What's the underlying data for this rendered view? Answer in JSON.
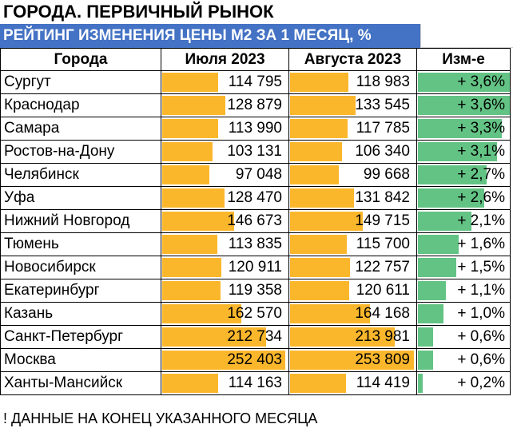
{
  "title": "ГОРОДА. ПЕРВИЧНЫЙ РЫНОК",
  "subtitle": "РЕЙТИНГ ИЗМЕНЕНИЯ ЦЕНЫ М2 ЗА 1 МЕСЯЦ, %",
  "headers": {
    "city": "Города",
    "july": "Июля 2023",
    "august": "Августа 2023",
    "change": "Изм-е"
  },
  "colors": {
    "header_bg": "#4472c4",
    "price_bar": "#fbb72c",
    "change_bar": "#63c384"
  },
  "rows": [
    {
      "city": "Сургут",
      "july": "114 795",
      "august": "118 983",
      "change": "+ 3,6%",
      "change_value": 3.6
    },
    {
      "city": "Краснодар",
      "july": "128 879",
      "august": "133 545",
      "change": "+ 3,6%",
      "change_value": 3.6
    },
    {
      "city": "Самара",
      "july": "113 990",
      "august": "117 785",
      "change": "+ 3,3%",
      "change_value": 3.3
    },
    {
      "city": "Ростов-на-Дону",
      "july": "103 131",
      "august": "106 340",
      "change": "+ 3,1%",
      "change_value": 3.1
    },
    {
      "city": "Челябинск",
      "july": "97 048",
      "august": "99 668",
      "change": "+ 2,7%",
      "change_value": 2.7
    },
    {
      "city": "Уфа",
      "july": "128 470",
      "august": "131 842",
      "change": "+ 2,6%",
      "change_value": 2.6
    },
    {
      "city": "Нижний Новгород",
      "july": "146 673",
      "august": "149 715",
      "change": "+ 2,1%",
      "change_value": 2.1
    },
    {
      "city": "Тюмень",
      "july": "113 835",
      "august": "115 700",
      "change": "+ 1,6%",
      "change_value": 1.6
    },
    {
      "city": "Новосибирск",
      "july": "120 911",
      "august": "122 757",
      "change": "+ 1,5%",
      "change_value": 1.5
    },
    {
      "city": "Екатеринбург",
      "july": "119 358",
      "august": "120 611",
      "change": "+ 1,1%",
      "change_value": 1.1
    },
    {
      "city": "Казань",
      "july": "162 570",
      "august": "164 168",
      "change": "+ 1,0%",
      "change_value": 1.0
    },
    {
      "city": "Санкт-Петербург",
      "july": "212 734",
      "august": "213 981",
      "change": "+ 0,6%",
      "change_value": 0.6
    },
    {
      "city": "Москва",
      "july": "252 403",
      "august": "253 809",
      "change": "+ 0,6%",
      "change_value": 0.6
    },
    {
      "city": "Ханты-Мансийск",
      "july": "114 163",
      "august": "114 419",
      "change": "+ 0,2%",
      "change_value": 0.2
    }
  ],
  "footnote": "! ДАННЫЕ НА КОНЕЦ УКАЗАННОГО МЕСЯЦА"
}
